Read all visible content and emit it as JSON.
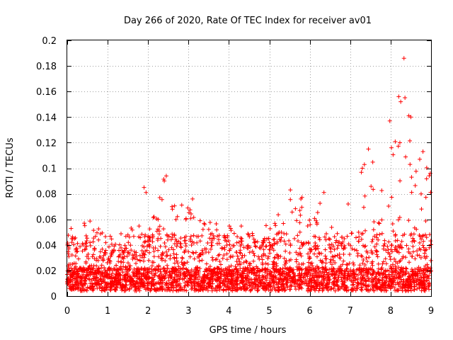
{
  "chart_data": {
    "type": "scatter",
    "title": "Day 266 of 2020, Rate Of TEC Index for receiver av01",
    "xlabel": "GPS time / hours",
    "ylabel": "ROTI / TECUs",
    "xlim": [
      0,
      9
    ],
    "ylim": [
      0,
      0.2
    ],
    "xticks": [
      0,
      1,
      2,
      3,
      4,
      5,
      6,
      7,
      8,
      9
    ],
    "xtick_labels": [
      "0",
      "1",
      "2",
      "3",
      "4",
      "5",
      "6",
      "7",
      "8",
      "9"
    ],
    "yticks": [
      0,
      0.02,
      0.04,
      0.06,
      0.08,
      0.1,
      0.12,
      0.14,
      0.16,
      0.18,
      0.2
    ],
    "ytick_labels": [
      "0",
      "0.02",
      "0.04",
      "0.06",
      "0.08",
      "0.1",
      "0.12",
      "0.14",
      "0.16",
      "0.18",
      "0.2"
    ],
    "grid": true,
    "legend": "none",
    "marker": "plus",
    "color": "#ff0000",
    "envelope": {
      "description": "approximate upper envelope of the ROTI values by hour",
      "x": [
        0,
        0.5,
        1,
        1.5,
        1.9,
        2.0,
        2.4,
        2.5,
        3.0,
        3.5,
        4.0,
        4.5,
        5.0,
        5.5,
        6.0,
        6.3,
        6.5,
        7.0,
        7.3,
        7.5,
        7.7,
        8.0,
        8.2,
        8.3,
        8.4,
        8.6,
        8.8,
        9.0
      ],
      "y": [
        0.055,
        0.06,
        0.05,
        0.05,
        0.085,
        0.065,
        0.095,
        0.07,
        0.075,
        0.06,
        0.06,
        0.06,
        0.055,
        0.083,
        0.075,
        0.08,
        0.06,
        0.075,
        0.1,
        0.115,
        0.08,
        0.117,
        0.157,
        0.186,
        0.14,
        0.1,
        0.11,
        0.095
      ]
    },
    "notable_points": [
      {
        "x": 8.33,
        "y": 0.186
      },
      {
        "x": 8.2,
        "y": 0.156
      },
      {
        "x": 8.25,
        "y": 0.152
      },
      {
        "x": 8.45,
        "y": 0.141
      },
      {
        "x": 8.5,
        "y": 0.14
      },
      {
        "x": 7.98,
        "y": 0.137
      },
      {
        "x": 8.02,
        "y": 0.116
      },
      {
        "x": 7.45,
        "y": 0.115
      },
      {
        "x": 8.8,
        "y": 0.113
      },
      {
        "x": 8.72,
        "y": 0.107
      },
      {
        "x": 8.48,
        "y": 0.103
      },
      {
        "x": 7.3,
        "y": 0.1
      },
      {
        "x": 8.98,
        "y": 0.096
      },
      {
        "x": 2.45,
        "y": 0.094
      },
      {
        "x": 2.4,
        "y": 0.09
      },
      {
        "x": 1.9,
        "y": 0.085
      },
      {
        "x": 1.95,
        "y": 0.081
      },
      {
        "x": 5.52,
        "y": 0.083
      },
      {
        "x": 6.35,
        "y": 0.081
      },
      {
        "x": 3.1,
        "y": 0.076
      },
      {
        "x": 6.95,
        "y": 0.072
      }
    ]
  },
  "colors": {
    "marker": "#ff0000",
    "grid": "#a0a0a0",
    "frame": "#000000",
    "background": "#ffffff"
  }
}
